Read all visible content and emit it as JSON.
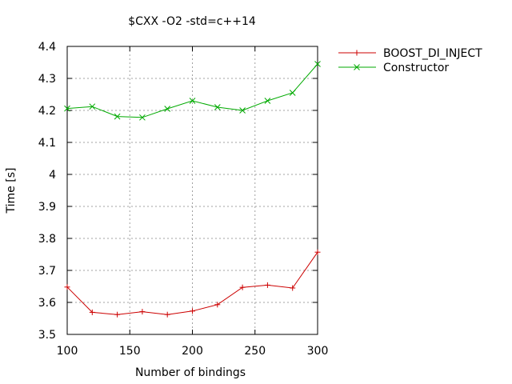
{
  "chart_data": {
    "type": "line",
    "title": "$CXX -O2 -std=c++14",
    "xlabel": "Number of bindings",
    "ylabel": "Time [s]",
    "xlim": [
      100,
      300
    ],
    "ylim": [
      3.5,
      4.4
    ],
    "x_ticks": [
      100,
      150,
      200,
      250,
      300
    ],
    "x_tick_labels": [
      "100",
      "150",
      "200",
      "250",
      "300"
    ],
    "y_ticks": [
      3.5,
      3.6,
      3.7,
      3.8,
      3.9,
      4.0,
      4.1,
      4.2,
      4.3,
      4.4
    ],
    "y_tick_labels": [
      "3.5",
      "3.6",
      "3.7",
      "3.8",
      "3.9",
      "4",
      "4.1",
      "4.2",
      "4.3",
      "4.4"
    ],
    "grid": true,
    "legend_position": "outside-top-right",
    "x": [
      100,
      120,
      140,
      160,
      180,
      200,
      220,
      240,
      260,
      280,
      300
    ],
    "series": [
      {
        "name": "BOOST_DI_INJECT",
        "color": "#cc0000",
        "marker": "plus",
        "values": [
          3.648,
          3.569,
          3.562,
          3.571,
          3.562,
          3.573,
          3.593,
          3.647,
          3.654,
          3.645,
          3.757
        ]
      },
      {
        "name": "Constructor",
        "color": "#00aa00",
        "marker": "cross",
        "values": [
          4.206,
          4.212,
          4.181,
          4.178,
          4.205,
          4.23,
          4.21,
          4.2,
          4.23,
          4.255,
          4.345
        ]
      }
    ]
  }
}
